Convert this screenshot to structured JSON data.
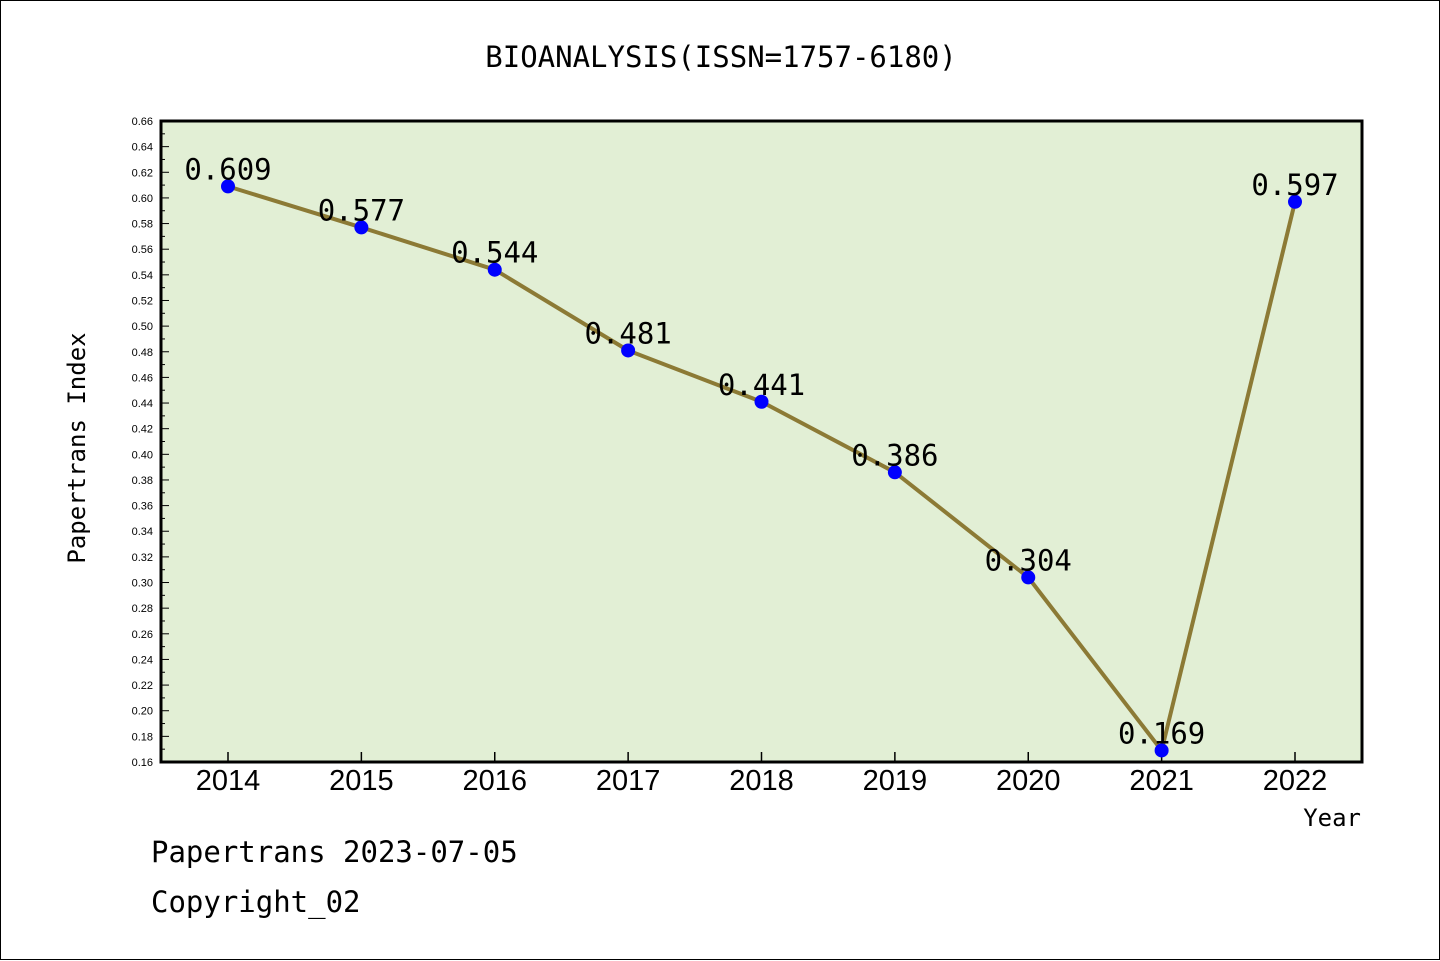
{
  "footer": {
    "line1": "Papertrans 2023-07-05",
    "line2": "Copyright_02"
  },
  "colors": {
    "plot_background": "#e2efd5",
    "line": "#8c7a35",
    "marker": "#0000ff"
  },
  "chart_data": {
    "type": "line",
    "title": "BIOANALYSIS(ISSN=1757-6180)",
    "xlabel": "Year",
    "ylabel": "Papertrans Index",
    "categories": [
      "2014",
      "2015",
      "2016",
      "2017",
      "2018",
      "2019",
      "2020",
      "2021",
      "2022"
    ],
    "values": [
      0.609,
      0.577,
      0.544,
      0.481,
      0.441,
      0.386,
      0.304,
      0.169,
      0.597
    ],
    "data_labels": [
      "0.609",
      "0.577",
      "0.544",
      "0.481",
      "0.441",
      "0.386",
      "0.304",
      "0.169",
      "0.597"
    ],
    "ylim": [
      0.16,
      0.66
    ],
    "yticks": [
      "0.16",
      "0.18",
      "0.20",
      "0.22",
      "0.24",
      "0.26",
      "0.28",
      "0.30",
      "0.32",
      "0.34",
      "0.36",
      "0.38",
      "0.40",
      "0.42",
      "0.44",
      "0.46",
      "0.48",
      "0.50",
      "0.52",
      "0.54",
      "0.56",
      "0.58",
      "0.60",
      "0.62",
      "0.64",
      "0.66"
    ],
    "grid": false
  }
}
